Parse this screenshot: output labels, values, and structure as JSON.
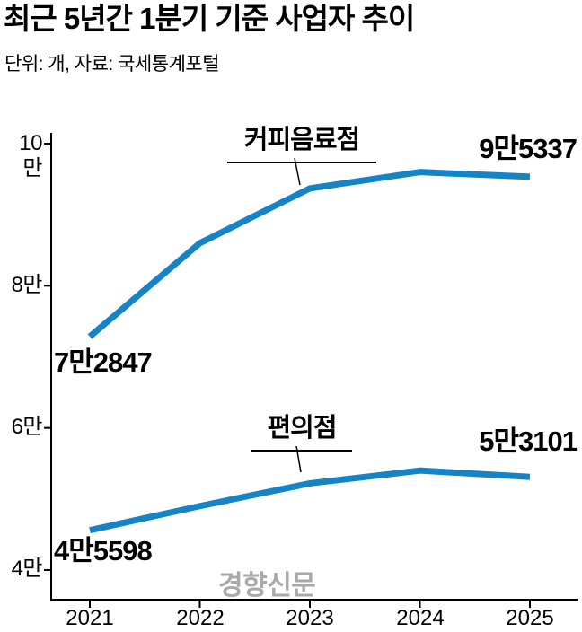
{
  "header": {
    "title": "최근 5년간 1분기 기준 사업자 추이",
    "subtitle": "단위: 개, 자료: 국세통계포털"
  },
  "watermark": "경향신문",
  "chart_data": {
    "type": "line",
    "title": "최근 5년간 1분기 기준 사업자 추이",
    "unit_note": "단위: 개, 자료: 국세통계포털",
    "categories": [
      "2021",
      "2022",
      "2023",
      "2024",
      "2025"
    ],
    "series": [
      {
        "name": "커피음료점",
        "values": [
          72847,
          86000,
          93700,
          96000,
          95337
        ],
        "first_label": "7만2847",
        "last_label": "9만5337"
      },
      {
        "name": "편의점",
        "values": [
          45598,
          49000,
          52200,
          54000,
          53101
        ],
        "first_label": "4만5598",
        "last_label": "5만3101"
      }
    ],
    "y_ticks": [
      {
        "label": "10만",
        "value": 100000
      },
      {
        "label": "8만",
        "value": 80000
      },
      {
        "label": "6만",
        "value": 60000
      },
      {
        "label": "4만",
        "value": 40000
      }
    ],
    "ylim": [
      40000,
      100000
    ],
    "grid": false,
    "legend_position": "inline-callouts",
    "line_color": "#1484c7",
    "axis_color": "#000000"
  }
}
